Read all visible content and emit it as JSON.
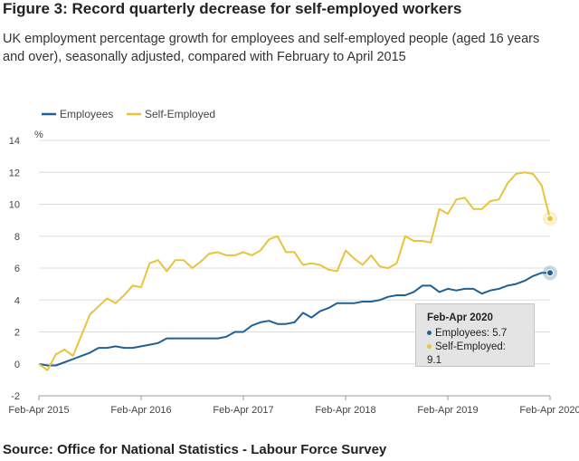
{
  "header": {
    "title": "Figure 3: Record quarterly decrease for self-employed workers",
    "subtitle": "UK employment percentage growth for employees and self-employed people (aged 16 years and over), seasonally adjusted, compared with February to April 2015"
  },
  "footer": {
    "source": "Source: Office for National Statistics - Labour Force Survey"
  },
  "tooltip": {
    "title": "Feb-Apr 2020",
    "employees": "Employees: 5.7",
    "self_employed": "Self-Employed: 9.1"
  },
  "colors": {
    "employees": "#206095",
    "self_employed": "#e8c43a",
    "grid": "#dedede",
    "axis": "#999999"
  },
  "chart_data": {
    "type": "line",
    "ylabel": "%",
    "ylim": [
      -2,
      14
    ],
    "yticks": [
      -2,
      0,
      2,
      4,
      6,
      8,
      10,
      12,
      14
    ],
    "xticks": [
      "Feb-Apr 2015",
      "Feb-Apr 2016",
      "Feb-Apr 2017",
      "Feb-Apr 2018",
      "Feb-Apr 2019",
      "Feb-Apr 2020"
    ],
    "legend": "top-left",
    "grid": true,
    "series": [
      {
        "name": "Employees",
        "values": [
          0.0,
          -0.1,
          -0.1,
          0.1,
          0.3,
          0.5,
          0.7,
          1.0,
          1.0,
          1.1,
          1.0,
          1.0,
          1.1,
          1.2,
          1.3,
          1.6,
          1.6,
          1.6,
          1.6,
          1.6,
          1.6,
          1.6,
          1.7,
          2.0,
          2.0,
          2.4,
          2.6,
          2.7,
          2.5,
          2.5,
          2.6,
          3.2,
          2.9,
          3.3,
          3.5,
          3.8,
          3.8,
          3.8,
          3.9,
          3.9,
          4.0,
          4.2,
          4.3,
          4.3,
          4.5,
          4.9,
          4.9,
          4.5,
          4.7,
          4.6,
          4.7,
          4.7,
          4.4,
          4.6,
          4.7,
          4.9,
          5.0,
          5.2,
          5.5,
          5.7,
          5.7
        ]
      },
      {
        "name": "Self-Employed",
        "values": [
          0.0,
          -0.4,
          0.6,
          0.9,
          0.5,
          1.8,
          3.1,
          3.6,
          4.1,
          3.8,
          4.3,
          4.9,
          4.8,
          6.3,
          6.5,
          5.8,
          6.5,
          6.5,
          6.0,
          6.4,
          6.9,
          7.0,
          6.8,
          6.8,
          7.0,
          6.8,
          7.1,
          7.8,
          8.0,
          7.0,
          7.0,
          6.2,
          6.3,
          6.2,
          5.9,
          5.8,
          7.1,
          6.6,
          6.2,
          6.8,
          6.1,
          6.0,
          6.3,
          8.0,
          7.7,
          7.7,
          7.6,
          9.7,
          9.4,
          10.3,
          10.4,
          9.7,
          9.7,
          10.2,
          10.3,
          11.3,
          11.9,
          12.0,
          11.9,
          11.2,
          9.1
        ]
      }
    ]
  }
}
